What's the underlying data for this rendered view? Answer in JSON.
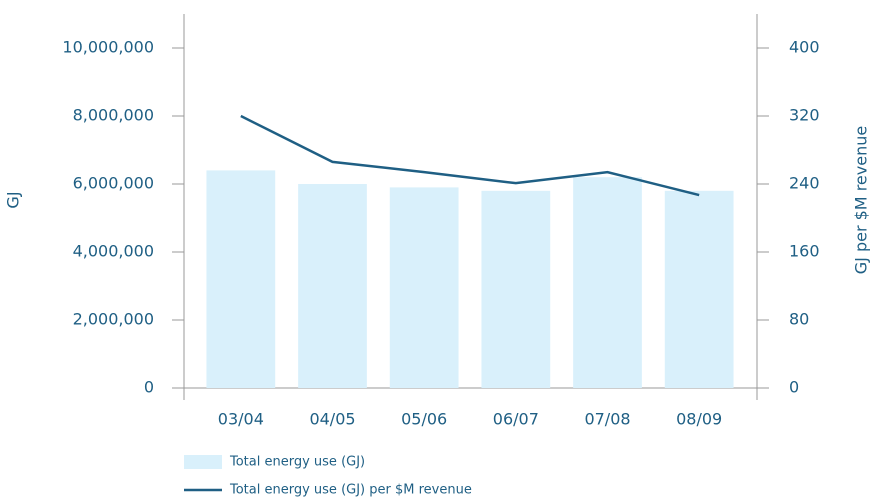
{
  "chart_data": {
    "type": "bar_line",
    "categories": [
      "03/04",
      "04/05",
      "05/06",
      "06/07",
      "07/08",
      "08/09"
    ],
    "series": [
      {
        "name": "Total energy use (GJ)",
        "type": "bar",
        "color": "#d9f0fb",
        "values": [
          6400000,
          6000000,
          5900000,
          5800000,
          6200000,
          5800000
        ]
      },
      {
        "name": "Total energy use (GJ) per $M revenue",
        "type": "line",
        "axis": "y2",
        "color": "#1f5f84",
        "values": [
          320,
          266,
          254,
          241,
          254,
          227
        ]
      }
    ],
    "ylabel": "GJ",
    "y2label": "GJ per $M revenue",
    "ylim": [
      0,
      11000000
    ],
    "yticks": [
      0,
      {
        "value": 2000000,
        "label": "2,000,000"
      },
      {
        "value": 4000000,
        "label": "4,000,000"
      },
      {
        "value": 6000000,
        "label": "6,000,000"
      },
      {
        "value": 8000000,
        "label": "8,000,000"
      },
      {
        "value": 10000000,
        "label": "10,000,000"
      }
    ],
    "y2lim": [
      0,
      440
    ],
    "y2ticks": [
      0,
      80,
      160,
      240,
      320,
      400
    ],
    "grid": false,
    "legend": "bottom"
  }
}
